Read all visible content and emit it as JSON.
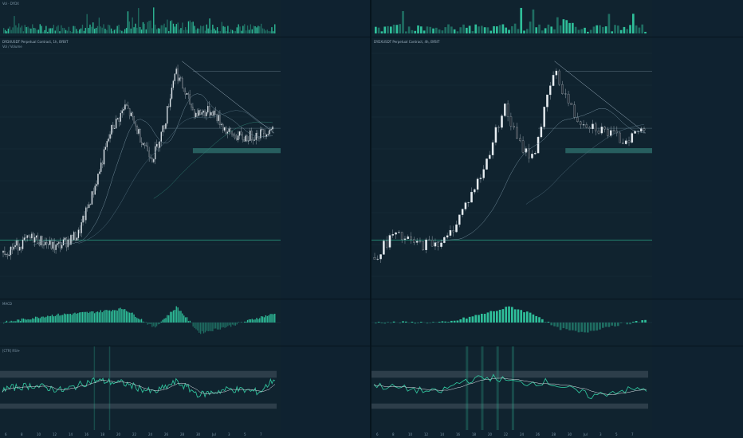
{
  "left": {
    "vol_label": "Vol · DYDX",
    "title": "DYDXUSDT Perpetual Contract, 1h, BYBIT",
    "subtitle": "Vol / Volume",
    "macd_label": "MACD",
    "rsi_label": "[CTR] RSI+"
  },
  "right": {
    "title": "DYDXUSDT Perpetual Contract, 4h, BYBIT"
  },
  "colors": {
    "up": "#e8eef2",
    "down": "#26303a",
    "accent": "#2fbf9a",
    "zone": "#3b8f86",
    "bg": "#10232f"
  },
  "time_axis": {
    "left_ticks": [
      "6",
      "8",
      "10",
      "12",
      "14",
      "16",
      "18",
      "20",
      "22",
      "24",
      "26",
      "28",
      "30",
      "Jul",
      "3",
      "5",
      "7"
    ],
    "right_ticks": [
      "6",
      "8",
      "10",
      "12",
      "14",
      "16",
      "18",
      "20",
      "22",
      "24",
      "26",
      "28",
      "30",
      "Jul",
      "3",
      "5",
      "7"
    ]
  },
  "chart_data": [
    {
      "type": "candlestick",
      "panel": "left-price",
      "x_unit": "hourly bars",
      "y_range": [
        13.0,
        23.0
      ],
      "price_path_keypoints": [
        [
          0,
          14.6
        ],
        [
          20,
          15.2
        ],
        [
          35,
          14.8
        ],
        [
          50,
          15.3
        ],
        [
          60,
          17.0
        ],
        [
          72,
          19.5
        ],
        [
          82,
          20.5
        ],
        [
          92,
          19.2
        ],
        [
          100,
          18.4
        ],
        [
          108,
          19.8
        ],
        [
          115,
          22.0
        ],
        [
          120,
          21.2
        ],
        [
          128,
          20.2
        ],
        [
          140,
          20.3
        ],
        [
          150,
          19.4
        ],
        [
          160,
          19.2
        ],
        [
          172,
          19.4
        ],
        [
          180,
          19.6
        ]
      ],
      "support_zone": [
        18.6,
        18.8
      ],
      "support_line": 15.1,
      "resistance_lines": [
        21.9,
        19.6
      ]
    },
    {
      "type": "candlestick",
      "panel": "right-price",
      "x_unit": "4h bars",
      "y_range": [
        13.0,
        23.0
      ],
      "price_path_keypoints": [
        [
          0,
          14.4
        ],
        [
          10,
          15.3
        ],
        [
          25,
          14.9
        ],
        [
          40,
          15.1
        ],
        [
          60,
          17.8
        ],
        [
          72,
          20.5
        ],
        [
          80,
          19.0
        ],
        [
          88,
          18.4
        ],
        [
          100,
          21.9
        ],
        [
          112,
          20.0
        ],
        [
          125,
          19.6
        ],
        [
          138,
          19.1
        ],
        [
          150,
          19.6
        ]
      ],
      "support_zone": [
        18.6,
        18.8
      ],
      "support_line": 15.1,
      "resistance_lines": [
        21.9,
        19.6
      ]
    },
    {
      "type": "bar",
      "panel": "macd",
      "left_hist_keypoints": [
        [
          0,
          0.0
        ],
        [
          30,
          0.4
        ],
        [
          60,
          0.6
        ],
        [
          80,
          0.8
        ],
        [
          100,
          -0.3
        ],
        [
          115,
          0.9
        ],
        [
          130,
          -0.6
        ],
        [
          150,
          -0.2
        ],
        [
          170,
          0.3
        ],
        [
          180,
          0.5
        ]
      ],
      "right_hist_keypoints": [
        [
          0,
          0
        ],
        [
          40,
          0
        ],
        [
          60,
          0.5
        ],
        [
          75,
          0.9
        ],
        [
          90,
          0.4
        ],
        [
          100,
          -0.3
        ],
        [
          115,
          -0.6
        ],
        [
          130,
          -0.2
        ],
        [
          150,
          0.1
        ]
      ]
    },
    {
      "type": "line",
      "panel": "rsi",
      "upper_band": 70,
      "lower_band": 30,
      "left_rsi_keypoints": [
        [
          0,
          50
        ],
        [
          20,
          55
        ],
        [
          40,
          48
        ],
        [
          60,
          62
        ],
        [
          80,
          58
        ],
        [
          100,
          45
        ],
        [
          115,
          60
        ],
        [
          130,
          42
        ],
        [
          150,
          50
        ],
        [
          170,
          46
        ],
        [
          180,
          65
        ]
      ],
      "right_rsi_keypoints": [
        [
          0,
          55
        ],
        [
          20,
          50
        ],
        [
          35,
          45
        ],
        [
          50,
          62
        ],
        [
          65,
          66
        ],
        [
          80,
          58
        ],
        [
          95,
          60
        ],
        [
          105,
          52
        ],
        [
          120,
          40
        ],
        [
          135,
          48
        ],
        [
          150,
          50
        ]
      ]
    }
  ]
}
